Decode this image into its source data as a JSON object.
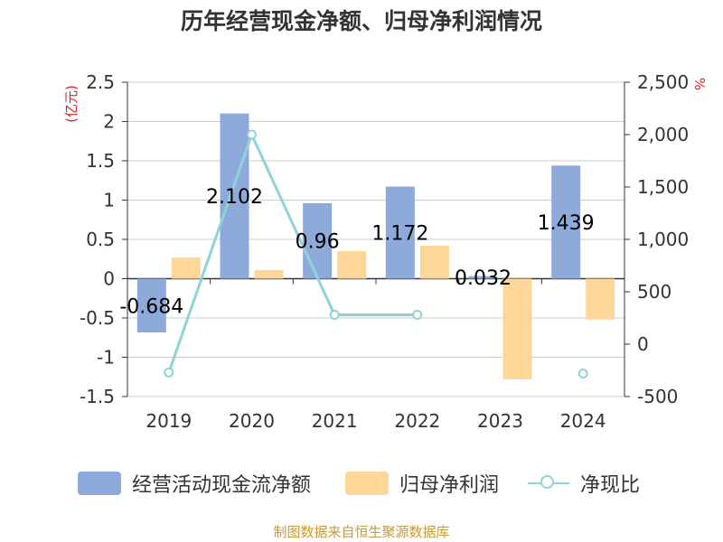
{
  "title": "历年经营现金净额、归母净利润情况",
  "source_note": "制图数据来自恒生聚源数据库",
  "colors": {
    "cashflow": "#8eaadb",
    "profit": "#ffd699",
    "ratio": "#8fd3d8",
    "unit": "#e02020"
  },
  "chart_data": {
    "type": "bar",
    "title": "历年经营现金净额、归母净利润情况",
    "categories": [
      "2019",
      "2020",
      "2021",
      "2022",
      "2023",
      "2024"
    ],
    "y_left": {
      "unit": "(亿元)",
      "ylim": [
        -1.5,
        2.5
      ],
      "ticks": [
        "2.5",
        "2",
        "1.5",
        "1",
        "0.5",
        "0",
        "-0.5",
        "-1",
        "-1.5"
      ]
    },
    "y_right": {
      "unit": "%",
      "ylim": [
        -500,
        2500
      ],
      "ticks": [
        "2,500",
        "2,000",
        "1,500",
        "1,000",
        "500",
        "0",
        "-500"
      ]
    },
    "series": [
      {
        "name": "经营活动现金流净额",
        "type": "bar",
        "axis": "left",
        "values": [
          -0.684,
          2.102,
          0.96,
          1.172,
          0.032,
          1.439
        ],
        "labels": [
          "-0.684",
          "2.102",
          "0.96",
          "1.172",
          "0.032",
          "1.439"
        ]
      },
      {
        "name": "归母净利润",
        "type": "bar",
        "axis": "left",
        "values": [
          0.27,
          0.11,
          0.35,
          0.42,
          -1.28,
          -0.52
        ]
      },
      {
        "name": "净现比",
        "type": "line",
        "axis": "right",
        "values": [
          -270,
          2000,
          280,
          280,
          null,
          -280
        ]
      }
    ],
    "grid": true,
    "legend": "bottom"
  }
}
